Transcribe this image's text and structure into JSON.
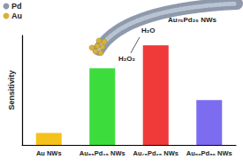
{
  "chart_data": {
    "type": "bar",
    "categories": [
      "Au NWs",
      "Au₈₅Pd₁₅ NWs",
      "Au₇₅Pd₂₅ NWs",
      "Au₅₀Pd₅₀ NWs"
    ],
    "values": [
      12,
      77,
      100,
      45
    ],
    "colors": [
      "#f5c21b",
      "#3ddc3d",
      "#f03a3a",
      "#7b6cf0"
    ],
    "y_label": "Sensitivity",
    "ylim": [
      0,
      110
    ],
    "tick_labels": "x",
    "grid": false,
    "annotations": {
      "legend_items": [
        {
          "label": "Pd",
          "color": "#8e9aac"
        },
        {
          "label": "Au",
          "color": "#d8b13a"
        }
      ],
      "wire_label": "Au₇₅Pd₂₅ NWs",
      "reactant": "H₂O₂",
      "product": "H₂O"
    }
  }
}
